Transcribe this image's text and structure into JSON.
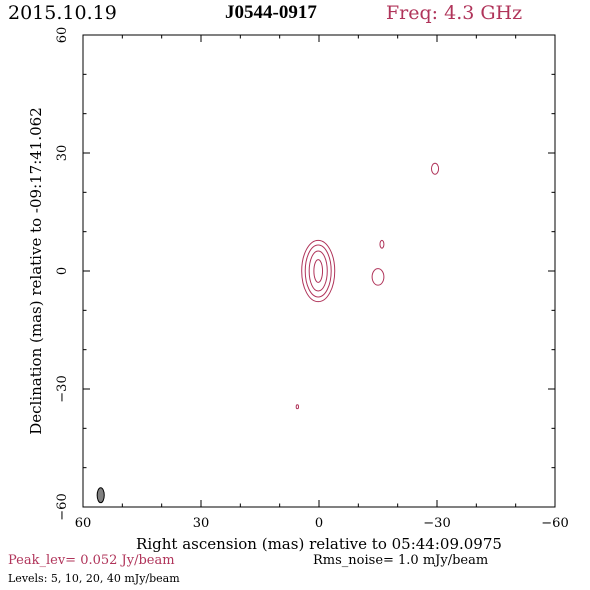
{
  "header": {
    "date": "2015.10.19",
    "source": "J0544-0917",
    "freq": "Freq: 4.3 GHz"
  },
  "footer": {
    "peak": "Peak_lev=  0.052 Jy/beam",
    "rms": "Rms_noise=  1.0 mJy/beam",
    "levels": "Levels:   5,  10,  20,  40 mJy/beam"
  },
  "colors": {
    "contour": "#b0345a",
    "beam": "#808080"
  },
  "chart_data": {
    "type": "contour",
    "xlabel": "Right ascension (mas) relative to 05:44:09.0975",
    "ylabel": "Declination (mas) relative to -09:17:41.062",
    "xlim": [
      60,
      -60
    ],
    "ylim": [
      -60,
      60
    ],
    "xticks": [
      60,
      30,
      0,
      -30,
      -60
    ],
    "yticks": [
      -60,
      -30,
      0,
      30,
      60
    ],
    "xticklabels": [
      "60",
      "30",
      "0",
      "−30",
      "−60"
    ],
    "yticklabels": [
      "−60",
      "−30",
      "0",
      "30",
      "60"
    ],
    "levels_mJy": [
      5,
      10,
      20,
      40
    ],
    "components": [
      {
        "x": 0.2,
        "y": 0.0,
        "contours": [
          [
            4.2,
            7.8
          ],
          [
            3.3,
            6.6
          ],
          [
            2.3,
            5.1
          ],
          [
            1.1,
            2.9
          ]
        ]
      },
      {
        "x": -15.0,
        "y": -1.5,
        "contours": [
          [
            1.5,
            2.1
          ]
        ]
      },
      {
        "x": -16.0,
        "y": 6.8,
        "contours": [
          [
            0.5,
            1.0
          ]
        ]
      },
      {
        "x": -29.5,
        "y": 26.0,
        "contours": [
          [
            0.9,
            1.4
          ]
        ]
      },
      {
        "x": 5.5,
        "y": -34.5,
        "contours": [
          [
            0.3,
            0.5
          ]
        ]
      }
    ],
    "beam": {
      "x": 55.5,
      "y": -57.0,
      "major": 1.9,
      "minor": 0.9
    }
  }
}
